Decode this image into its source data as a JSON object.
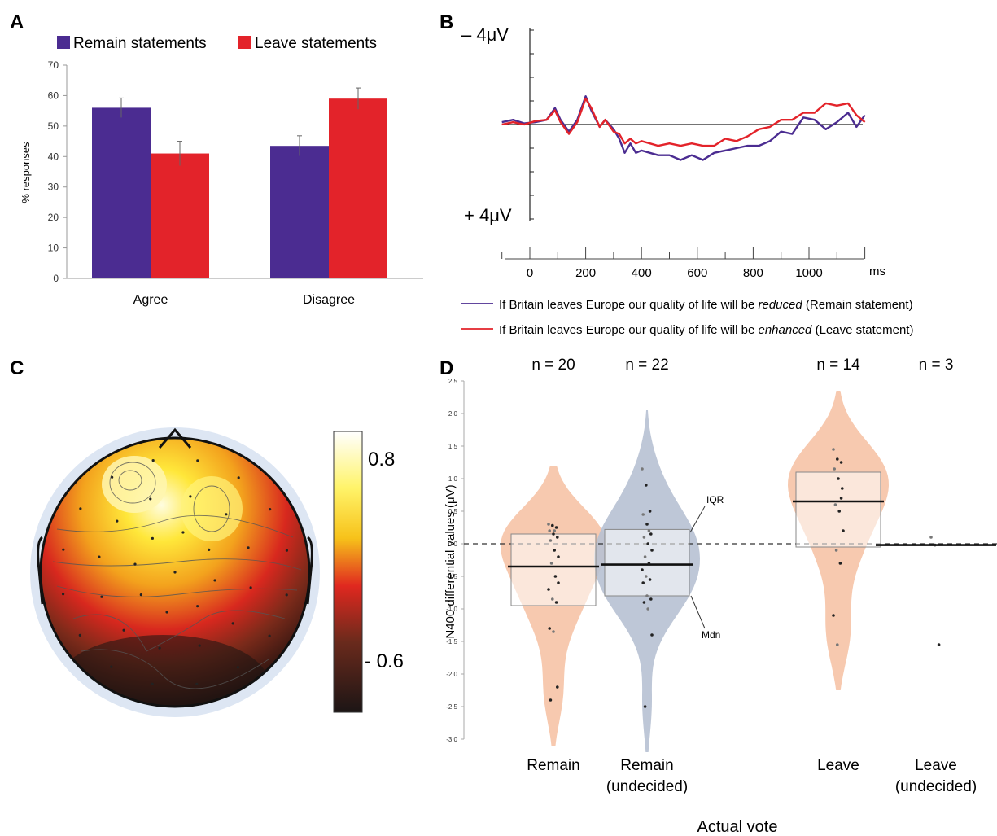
{
  "panels": {
    "A": {
      "letter": "A"
    },
    "B": {
      "letter": "B"
    },
    "C": {
      "letter": "C"
    },
    "D": {
      "letter": "D"
    }
  },
  "colors": {
    "remain": "#4b2c91",
    "leave": "#e3232a",
    "violin_orange": "#f6c3a6",
    "violin_blue": "#b7c1d3"
  },
  "chart_data": [
    {
      "panel": "A",
      "type": "bar",
      "categories": [
        "Agree",
        "Disagree"
      ],
      "series": [
        {
          "name": "Remain statements",
          "values": [
            56,
            43.5
          ],
          "errors": [
            3.2,
            3.3
          ]
        },
        {
          "name": "Leave statements",
          "values": [
            41,
            59
          ],
          "errors": [
            4,
            3.5
          ]
        }
      ],
      "ylabel": "% responses",
      "ylim": [
        0,
        70
      ],
      "yticks": [
        "0",
        "10",
        "20",
        "30",
        "40",
        "50",
        "60",
        "70"
      ],
      "legend": "top"
    },
    {
      "panel": "B",
      "type": "line",
      "xticks": [
        "0",
        "200",
        "400",
        "600",
        "800",
        "1000"
      ],
      "xunit": "ms",
      "xlim": [
        -100,
        1200
      ],
      "ylim": [
        -4,
        4
      ],
      "ytop_label": "– 4μV",
      "ybottom_label": "+ 4μV",
      "series": [
        {
          "name": "Remain",
          "x": [
            -100,
            -60,
            -20,
            20,
            60,
            90,
            110,
            140,
            170,
            200,
            220,
            250,
            270,
            300,
            320,
            340,
            360,
            380,
            400,
            430,
            460,
            500,
            540,
            580,
            620,
            660,
            700,
            740,
            780,
            820,
            860,
            900,
            940,
            980,
            1020,
            1060,
            1100,
            1140,
            1170,
            1200
          ],
          "y": [
            0.1,
            0.2,
            0.05,
            0.1,
            0.2,
            0.7,
            0.2,
            -0.3,
            0.2,
            1.2,
            0.6,
            -0.1,
            0.2,
            -0.2,
            -0.6,
            -1.2,
            -0.8,
            -1.2,
            -1.1,
            -1.2,
            -1.3,
            -1.3,
            -1.5,
            -1.3,
            -1.5,
            -1.2,
            -1.1,
            -1.0,
            -0.9,
            -0.9,
            -0.7,
            -0.3,
            -0.4,
            0.3,
            0.2,
            -0.2,
            0.1,
            0.5,
            -0.1,
            0.4
          ]
        },
        {
          "name": "Leave",
          "x": [
            -100,
            -60,
            -20,
            20,
            60,
            90,
            110,
            140,
            170,
            200,
            220,
            250,
            270,
            300,
            320,
            340,
            360,
            380,
            400,
            430,
            460,
            500,
            540,
            580,
            620,
            660,
            700,
            740,
            780,
            820,
            860,
            900,
            940,
            980,
            1020,
            1060,
            1100,
            1140,
            1170,
            1200
          ],
          "y": [
            0.0,
            0.1,
            0.0,
            0.15,
            0.2,
            0.6,
            0.1,
            -0.4,
            0.1,
            1.1,
            0.7,
            -0.1,
            0.2,
            -0.3,
            -0.4,
            -0.8,
            -0.6,
            -0.8,
            -0.7,
            -0.8,
            -0.9,
            -0.8,
            -0.9,
            -0.8,
            -0.9,
            -0.9,
            -0.6,
            -0.7,
            -0.5,
            -0.2,
            -0.1,
            0.2,
            0.2,
            0.5,
            0.5,
            0.9,
            0.8,
            0.9,
            0.4,
            0.1
          ]
        }
      ],
      "legend_lines": [
        {
          "prefix": "If Britain leaves Europe our quality of life will be ",
          "emph": "reduced",
          "suffix": " (Remain statement)"
        },
        {
          "prefix": "If Britain leaves Europe our quality of life will be ",
          "emph": "enhanced",
          "suffix": " (Leave statement)"
        }
      ]
    },
    {
      "panel": "C",
      "type": "heatmap",
      "colorbar_ticks": [
        "0.8",
        "- 0.6"
      ],
      "colorbar_range": [
        -0.6,
        0.8
      ]
    },
    {
      "panel": "D",
      "type": "scatter",
      "ylabel": "N400 differential values (μV)",
      "xlabel": "Actual vote",
      "ylim": [
        -3.0,
        2.5
      ],
      "yticks": [
        "2.5",
        "2.0",
        "1.5",
        "1.0",
        "0.5",
        "0.0",
        "-0.5",
        "-1.0",
        "-1.5",
        "-2.0",
        "-2.5",
        "-3.0"
      ],
      "groups": [
        {
          "label": "Remain",
          "label2": "",
          "n_label": "n = 20",
          "median": -0.35,
          "q1": -0.95,
          "q3": 0.15,
          "violin": "orange",
          "points": [
            0.3,
            0.28,
            0.25,
            0.2,
            0.15,
            0.1,
            0.05,
            -0.1,
            -0.2,
            -0.3,
            -0.5,
            -0.7,
            -0.85,
            -0.9,
            -1.3,
            -1.35,
            -2.2,
            -2.4,
            0.2,
            -0.6
          ]
        },
        {
          "label": "Remain",
          "label2": "(undecided)",
          "n_label": "n = 22",
          "median": -0.32,
          "q1": -0.8,
          "q3": 0.22,
          "violin": "blue",
          "points": [
            1.15,
            0.9,
            0.5,
            0.45,
            0.3,
            0.15,
            0.1,
            0.0,
            -0.1,
            -0.2,
            -0.3,
            -0.4,
            -0.5,
            -0.55,
            -0.6,
            -0.8,
            -0.85,
            -0.9,
            -1.0,
            -1.4,
            -2.5,
            0.2
          ]
        },
        {
          "label": "Leave",
          "label2": "",
          "n_label": "n = 14",
          "median": 0.65,
          "q1": -0.05,
          "q3": 1.1,
          "violin": "orange",
          "points": [
            1.45,
            1.3,
            1.25,
            1.15,
            1.0,
            0.85,
            0.6,
            0.5,
            0.2,
            -0.1,
            -0.3,
            -1.1,
            -1.55,
            0.7
          ]
        },
        {
          "label": "Leave",
          "label2": "(undecided)",
          "n_label": "n = 3",
          "median": -0.02,
          "q1": -0.02,
          "q3": -0.02,
          "violin": "none",
          "points": [
            0.1,
            -0.02,
            -1.55
          ]
        }
      ],
      "annotations": [
        "IQR",
        "Mdn"
      ]
    }
  ]
}
